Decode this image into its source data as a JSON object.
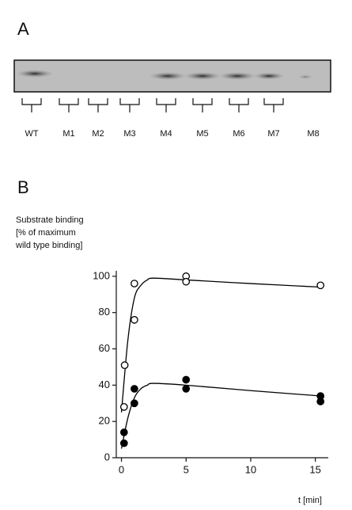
{
  "panel_a": {
    "label": "A",
    "lanes": [
      "WT",
      "M1",
      "M2",
      "M3",
      "M4",
      "M5",
      "M6",
      "M7",
      "M8"
    ]
  },
  "chart_data": {
    "type": "scatter",
    "panel_label": "B",
    "y_label": [
      "Substrate binding",
      "[% of maximum",
      "wild type binding]"
    ],
    "x_label": "t [min]",
    "xlim": [
      -0.4,
      16.0
    ],
    "ylim": [
      0,
      103
    ],
    "xticks": [
      0,
      5,
      10,
      15
    ],
    "yticks": [
      0,
      20,
      40,
      60,
      80,
      100
    ],
    "series": [
      {
        "marker": "open",
        "color": "#000000",
        "x": [
          0.2,
          0.25,
          1,
          1,
          5,
          5,
          15.4
        ],
        "values": [
          28,
          51,
          76,
          96,
          100,
          97,
          95
        ]
      },
      {
        "marker": "filled",
        "color": "#000000",
        "x": [
          0.2,
          0.2,
          1,
          1,
          5,
          5,
          15.4,
          15.4
        ],
        "values": [
          14,
          8,
          38,
          30,
          43,
          38,
          34,
          31
        ]
      }
    ],
    "fits": [
      {
        "color": "#000000",
        "x": [
          0,
          0.5,
          1,
          1.5,
          2,
          2.5,
          5,
          10,
          15.5
        ],
        "values": [
          25,
          65,
          88,
          95,
          98,
          99,
          98,
          96,
          94
        ]
      },
      {
        "color": "#000000",
        "x": [
          0,
          0.5,
          1,
          1.5,
          2,
          2.5,
          5,
          10,
          15.5
        ],
        "values": [
          5,
          22,
          33,
          38,
          40,
          41,
          40,
          37,
          34
        ]
      }
    ]
  }
}
